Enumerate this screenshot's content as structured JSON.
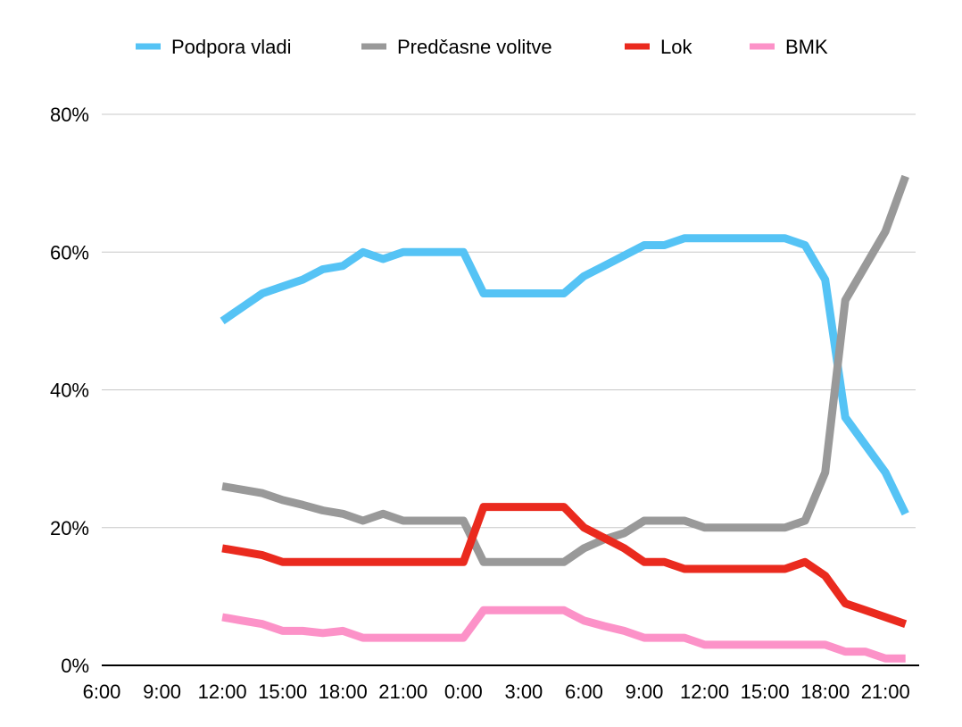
{
  "chart_data": {
    "type": "line",
    "title": "",
    "xlabel": "",
    "ylabel": "",
    "ylim": [
      0,
      80
    ],
    "y_ticks": [
      "0%",
      "20%",
      "40%",
      "60%",
      "80%"
    ],
    "y_tick_values": [
      0,
      20,
      40,
      60,
      80
    ],
    "x_ticks": [
      "6:00",
      "9:00",
      "12:00",
      "15:00",
      "18:00",
      "21:00",
      "0:00",
      "3:00",
      "6:00",
      "9:00",
      "12:00",
      "15:00",
      "18:00",
      "21:00"
    ],
    "x_hours": [
      6,
      9,
      12,
      15,
      18,
      21,
      24,
      27,
      30,
      33,
      36,
      39,
      42,
      45
    ],
    "xlim_hours": [
      6,
      46.5
    ],
    "grid": "horizontal",
    "legend_position": "top",
    "series": [
      {
        "name": "Podpora vladi",
        "color": "#55c3f5",
        "points": [
          [
            12,
            50
          ],
          [
            13,
            52
          ],
          [
            14,
            54
          ],
          [
            15,
            55
          ],
          [
            16,
            56
          ],
          [
            17,
            57.5
          ],
          [
            18,
            58
          ],
          [
            19,
            60
          ],
          [
            20,
            59
          ],
          [
            21,
            60
          ],
          [
            22,
            60
          ],
          [
            23,
            60
          ],
          [
            24,
            60
          ],
          [
            25,
            54
          ],
          [
            26,
            54
          ],
          [
            27,
            54
          ],
          [
            28,
            54
          ],
          [
            29,
            54
          ],
          [
            30,
            56.5
          ],
          [
            31,
            58
          ],
          [
            32,
            59.5
          ],
          [
            33,
            61
          ],
          [
            34,
            61
          ],
          [
            35,
            62
          ],
          [
            36,
            62
          ],
          [
            37,
            62
          ],
          [
            38,
            62
          ],
          [
            39,
            62
          ],
          [
            40,
            62
          ],
          [
            41,
            61
          ],
          [
            42,
            56
          ],
          [
            43,
            36
          ],
          [
            44,
            32
          ],
          [
            45,
            28
          ],
          [
            46,
            22
          ]
        ]
      },
      {
        "name": "Predčasne volitve",
        "color": "#999999",
        "points": [
          [
            12,
            26
          ],
          [
            13,
            25.5
          ],
          [
            14,
            25
          ],
          [
            15,
            24
          ],
          [
            16,
            23.3
          ],
          [
            17,
            22.5
          ],
          [
            18,
            22
          ],
          [
            19,
            21
          ],
          [
            20,
            22
          ],
          [
            21,
            21
          ],
          [
            22,
            21
          ],
          [
            23,
            21
          ],
          [
            24,
            21
          ],
          [
            25,
            15
          ],
          [
            26,
            15
          ],
          [
            27,
            15
          ],
          [
            28,
            15
          ],
          [
            29,
            15
          ],
          [
            30,
            17
          ],
          [
            31,
            18.3
          ],
          [
            32,
            19.2
          ],
          [
            33,
            21
          ],
          [
            34,
            21
          ],
          [
            35,
            21
          ],
          [
            36,
            20
          ],
          [
            37,
            20
          ],
          [
            38,
            20
          ],
          [
            39,
            20
          ],
          [
            40,
            20
          ],
          [
            41,
            21
          ],
          [
            42,
            28
          ],
          [
            43,
            53
          ],
          [
            44,
            58
          ],
          [
            45,
            63
          ],
          [
            46,
            71
          ]
        ]
      },
      {
        "name": "Lok",
        "color": "#ea2a1e",
        "points": [
          [
            12,
            17
          ],
          [
            13,
            16.5
          ],
          [
            14,
            16
          ],
          [
            15,
            15
          ],
          [
            16,
            15
          ],
          [
            17,
            15
          ],
          [
            18,
            15
          ],
          [
            19,
            15
          ],
          [
            20,
            15
          ],
          [
            21,
            15
          ],
          [
            22,
            15
          ],
          [
            23,
            15
          ],
          [
            24,
            15
          ],
          [
            25,
            23
          ],
          [
            26,
            23
          ],
          [
            27,
            23
          ],
          [
            28,
            23
          ],
          [
            29,
            23
          ],
          [
            30,
            20
          ],
          [
            31,
            18.5
          ],
          [
            32,
            17
          ],
          [
            33,
            15
          ],
          [
            34,
            15
          ],
          [
            35,
            14
          ],
          [
            36,
            14
          ],
          [
            37,
            14
          ],
          [
            38,
            14
          ],
          [
            39,
            14
          ],
          [
            40,
            14
          ],
          [
            41,
            15
          ],
          [
            42,
            13
          ],
          [
            43,
            9
          ],
          [
            44,
            8
          ],
          [
            45,
            7
          ],
          [
            46,
            6
          ]
        ]
      },
      {
        "name": "BMK",
        "color": "#fc92c8",
        "points": [
          [
            12,
            7
          ],
          [
            13,
            6.5
          ],
          [
            14,
            6
          ],
          [
            15,
            5
          ],
          [
            16,
            5
          ],
          [
            17,
            4.7
          ],
          [
            18,
            5
          ],
          [
            19,
            4
          ],
          [
            20,
            4
          ],
          [
            21,
            4
          ],
          [
            22,
            4
          ],
          [
            23,
            4
          ],
          [
            24,
            4
          ],
          [
            25,
            8
          ],
          [
            26,
            8
          ],
          [
            27,
            8
          ],
          [
            28,
            8
          ],
          [
            29,
            8
          ],
          [
            30,
            6.5
          ],
          [
            31,
            5.7
          ],
          [
            32,
            5
          ],
          [
            33,
            4
          ],
          [
            34,
            4
          ],
          [
            35,
            4
          ],
          [
            36,
            3
          ],
          [
            37,
            3
          ],
          [
            38,
            3
          ],
          [
            39,
            3
          ],
          [
            40,
            3
          ],
          [
            41,
            3
          ],
          [
            42,
            3
          ],
          [
            43,
            2
          ],
          [
            44,
            2
          ],
          [
            45,
            1
          ],
          [
            46,
            1
          ]
        ]
      }
    ]
  }
}
